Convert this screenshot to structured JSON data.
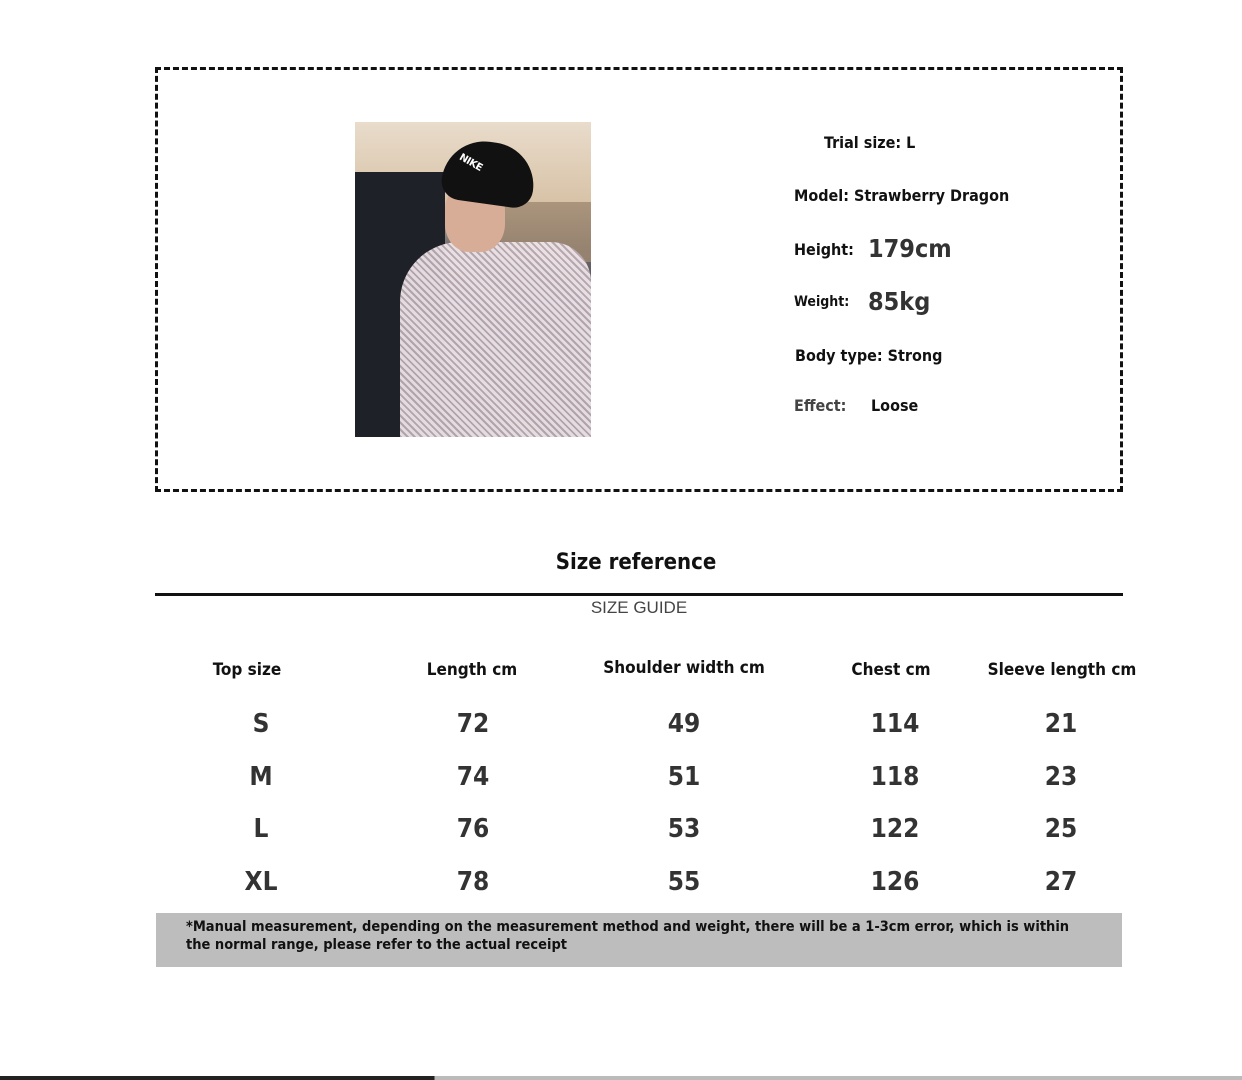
{
  "model_card": {
    "trial_size": "Trial size: L",
    "model": "Model: Strawberry Dragon",
    "height_label": "Height:",
    "height_value": "179cm",
    "weight_label": "Weight:",
    "weight_value": "85kg",
    "body_type": "Body type: Strong",
    "effect_label": "Effect:",
    "effect_value": "Loose",
    "hat_text": "NIKE"
  },
  "title": "Size reference",
  "subtitle": "SIZE GUIDE",
  "table": {
    "headers": [
      "Top size",
      "Length cm",
      "Shoulder width cm",
      "Chest cm",
      "Sleeve length cm"
    ],
    "rows": [
      [
        "S",
        "72",
        "49",
        "114",
        "21"
      ],
      [
        "M",
        "74",
        "51",
        "118",
        "23"
      ],
      [
        "L",
        "76",
        "53",
        "122",
        "25"
      ],
      [
        "XL",
        "78",
        "55",
        "126",
        "27"
      ]
    ]
  },
  "note": "*Manual measurement, depending on the measurement method and weight, there will be a 1-3cm error, which is within the normal range, please refer to the actual receipt"
}
